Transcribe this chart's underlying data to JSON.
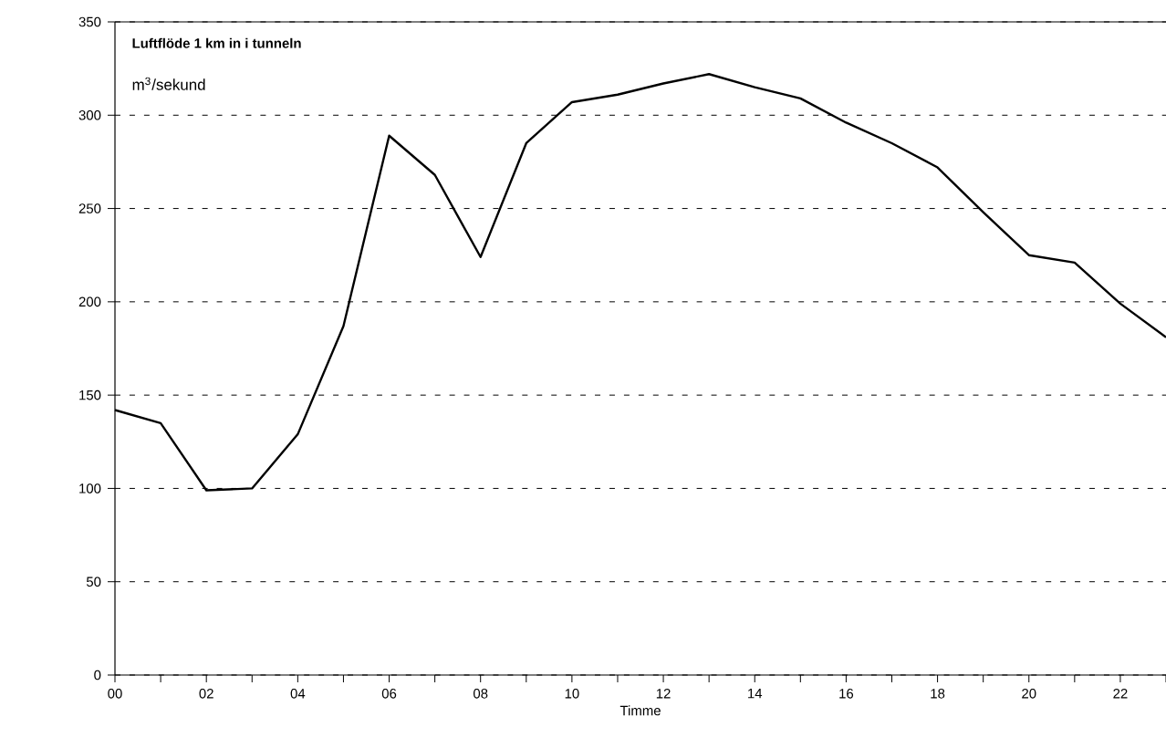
{
  "chart_data": {
    "type": "line",
    "title": "Luftflöde 1 km in i tunneln",
    "ylabel": "m$^{3}$/sekund",
    "xlabel": "Timme",
    "categories": [
      "00",
      null,
      "02",
      null,
      "04",
      null,
      "06",
      null,
      "08",
      null,
      "10",
      null,
      "12",
      null,
      "14",
      null,
      "16",
      null,
      "18",
      null,
      "20",
      null,
      "22",
      null
    ],
    "series": [
      {
        "color": "#000000",
        "values": [
          142,
          135,
          99,
          100,
          129,
          187,
          289,
          268,
          224,
          285,
          307,
          311,
          317,
          322,
          315,
          309,
          296,
          285,
          272,
          248,
          225,
          221,
          199,
          181
        ]
      }
    ],
    "ylim": [
      0,
      350
    ],
    "yticks": [
      0,
      50,
      100,
      150,
      200,
      250,
      300,
      350
    ],
    "grid": "y",
    "marker": "none",
    "line_style": "solid"
  }
}
